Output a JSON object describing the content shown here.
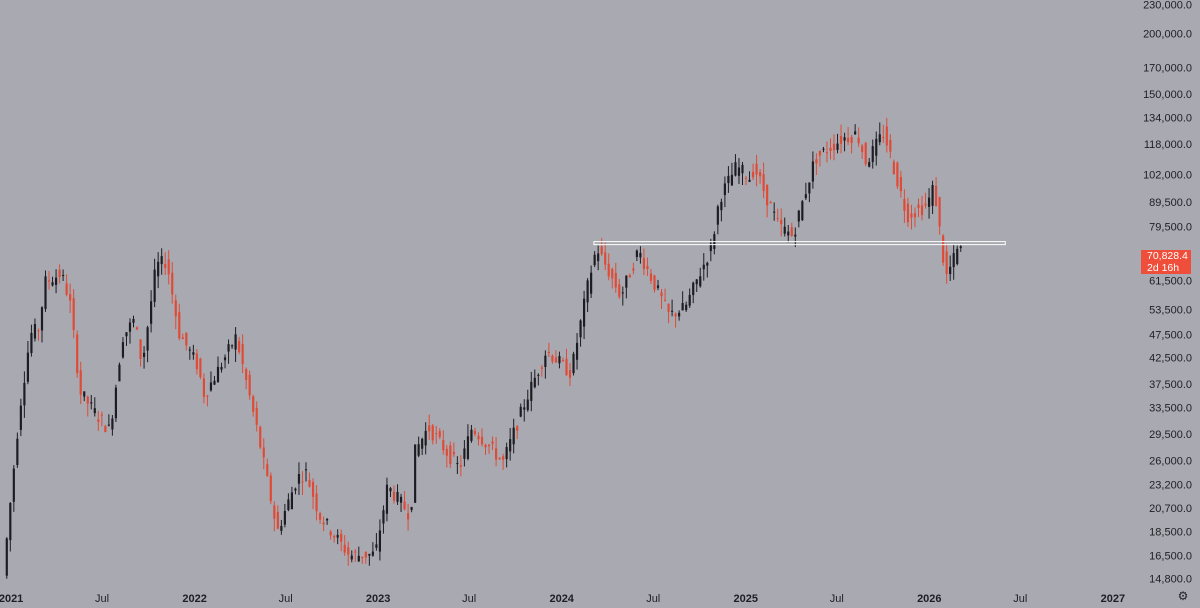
{
  "chart_data": {
    "type": "candlestick",
    "scale": "log",
    "ylim": [
      14000,
      235000
    ],
    "xlim": [
      "2020-12-10",
      "2027-02-20"
    ],
    "grid": false,
    "colors": {
      "background": "#a9aab1",
      "up": "#1c1c22",
      "down": "#e04a35",
      "level_line": "#ffffff",
      "badge": "#ef4e3b"
    },
    "y_ticks": [
      "230,000.0",
      "200,000.0",
      "170,000.0",
      "150,000.0",
      "134,000.0",
      "118,000.0",
      "102,000.0",
      "89,500.0",
      "79,500.0",
      "61,500.0",
      "53,500.0",
      "47,500.0",
      "42,500.0",
      "37,500.0",
      "33,500.0",
      "29,500.0",
      "26,000.0",
      "23,200.0",
      "20,700.0",
      "18,500.0",
      "16,500.0",
      "14,800.0"
    ],
    "x_ticks": [
      {
        "label": "2021",
        "date": "2021-01-01",
        "bold": true
      },
      {
        "label": "Jul",
        "date": "2021-07-01",
        "bold": false
      },
      {
        "label": "2022",
        "date": "2022-01-01",
        "bold": true
      },
      {
        "label": "Jul",
        "date": "2022-07-01",
        "bold": false
      },
      {
        "label": "2023",
        "date": "2023-01-01",
        "bold": true
      },
      {
        "label": "Jul",
        "date": "2023-07-01",
        "bold": false
      },
      {
        "label": "2024",
        "date": "2024-01-01",
        "bold": true
      },
      {
        "label": "Jul",
        "date": "2024-07-01",
        "bold": false
      },
      {
        "label": "2025",
        "date": "2025-01-01",
        "bold": true
      },
      {
        "label": "Jul",
        "date": "2025-07-01",
        "bold": false
      },
      {
        "label": "2026",
        "date": "2026-01-01",
        "bold": true
      },
      {
        "label": "Jul",
        "date": "2026-07-01",
        "bold": false
      },
      {
        "label": "2027",
        "date": "2027-01-01",
        "bold": true
      }
    ],
    "price_path": [
      [
        "2020-12-20",
        15000
      ],
      [
        "2021-01-08",
        24000
      ],
      [
        "2021-01-22",
        33500
      ],
      [
        "2021-02-12",
        47500
      ],
      [
        "2021-03-01",
        49000
      ],
      [
        "2021-03-13",
        61000
      ],
      [
        "2021-04-14",
        63500
      ],
      [
        "2021-05-01",
        56000
      ],
      [
        "2021-05-22",
        36000
      ],
      [
        "2021-06-22",
        32500
      ],
      [
        "2021-07-20",
        30000
      ],
      [
        "2021-08-14",
        47000
      ],
      [
        "2021-09-07",
        51000
      ],
      [
        "2021-09-22",
        41000
      ],
      [
        "2021-10-20",
        66000
      ],
      [
        "2021-11-10",
        67500
      ],
      [
        "2021-12-04",
        48000
      ],
      [
        "2022-01-10",
        41000
      ],
      [
        "2022-01-24",
        35500
      ],
      [
        "2022-03-28",
        47000
      ],
      [
        "2022-05-09",
        30000
      ],
      [
        "2022-06-18",
        18500
      ],
      [
        "2022-07-28",
        24000
      ],
      [
        "2022-08-14",
        24500
      ],
      [
        "2022-09-10",
        20000
      ],
      [
        "2022-11-09",
        16500
      ],
      [
        "2022-12-30",
        16600
      ],
      [
        "2023-01-23",
        23000
      ],
      [
        "2023-03-10",
        20000
      ],
      [
        "2023-03-18",
        27000
      ],
      [
        "2023-04-14",
        30500
      ],
      [
        "2023-06-15",
        25000
      ],
      [
        "2023-07-10",
        30500
      ],
      [
        "2023-09-10",
        25800
      ],
      [
        "2023-10-24",
        34500
      ],
      [
        "2023-12-05",
        44000
      ],
      [
        "2024-01-23",
        39500
      ],
      [
        "2024-02-28",
        62000
      ],
      [
        "2024-03-14",
        72000
      ],
      [
        "2024-05-01",
        57000
      ],
      [
        "2024-06-05",
        71000
      ],
      [
        "2024-08-05",
        52000
      ],
      [
        "2024-09-06",
        54000
      ],
      [
        "2024-10-29",
        72500
      ],
      [
        "2024-11-13",
        91000
      ],
      [
        "2024-12-17",
        106000
      ],
      [
        "2025-01-15",
        100000
      ],
      [
        "2025-01-21",
        106000
      ],
      [
        "2025-03-10",
        80000
      ],
      [
        "2025-04-08",
        76000
      ],
      [
        "2025-05-22",
        110000
      ],
      [
        "2025-07-14",
        121000
      ],
      [
        "2025-08-14",
        124000
      ],
      [
        "2025-09-01",
        108000
      ],
      [
        "2025-10-06",
        125000
      ],
      [
        "2025-11-21",
        84000
      ],
      [
        "2025-12-31",
        88000
      ],
      [
        "2026-01-14",
        97000
      ],
      [
        "2026-02-06",
        62000
      ],
      [
        "2026-03-01",
        70800
      ]
    ],
    "horizontal_line": {
      "value": 73500,
      "from": "2024-03-05",
      "to": "2026-06-01"
    },
    "last_price": {
      "label": "70,828.4",
      "countdown": "2d 16h"
    }
  },
  "icons": {
    "settings": "gear-icon"
  }
}
